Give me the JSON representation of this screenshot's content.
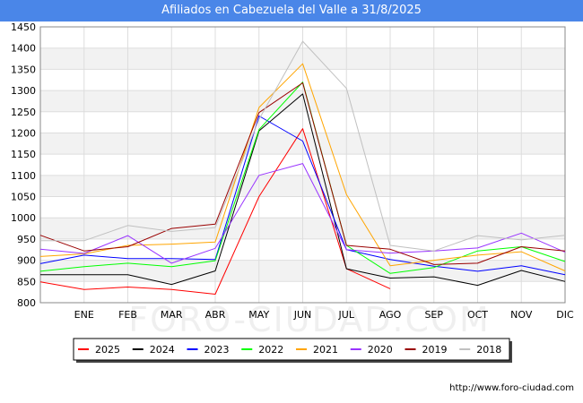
{
  "page": {
    "source_url": "http://www.foro-ciudad.com",
    "watermark": "FORO-CIUDAD.COM"
  },
  "chart_data": {
    "type": "line",
    "title": "Afiliados en Cabezuela del Valle a 31/8/2025",
    "xlabel": "",
    "ylabel": "",
    "categories": [
      "",
      "ENE",
      "FEB",
      "MAR",
      "ABR",
      "MAY",
      "JUN",
      "JUL",
      "AGO",
      "SEP",
      "OCT",
      "NOV",
      "DIC"
    ],
    "yticks": [
      800,
      850,
      900,
      950,
      1000,
      1050,
      1100,
      1150,
      1200,
      1250,
      1300,
      1350,
      1400,
      1450
    ],
    "ylim": [
      800,
      1450
    ],
    "grid": true,
    "legend": "bottom",
    "series": [
      {
        "name": "2025",
        "color": "#ff0000",
        "values": [
          849,
          831,
          837,
          831,
          820,
          1050,
          1210,
          880,
          833,
          null,
          null,
          null,
          null
        ]
      },
      {
        "name": "2024",
        "color": "#000000",
        "values": [
          866,
          866,
          866,
          843,
          875,
          1205,
          1292,
          880,
          858,
          861,
          841,
          876,
          850
        ]
      },
      {
        "name": "2023",
        "color": "#0000ff",
        "values": [
          892,
          912,
          904,
          904,
          902,
          1240,
          1181,
          925,
          902,
          886,
          874,
          887,
          866
        ]
      },
      {
        "name": "2022",
        "color": "#00ff00",
        "values": [
          874,
          885,
          893,
          885,
          899,
          1208,
          1320,
          935,
          869,
          883,
          922,
          932,
          897
        ]
      },
      {
        "name": "2021",
        "color": "#ffa500",
        "values": [
          909,
          915,
          935,
          938,
          943,
          1260,
          1363,
          1055,
          887,
          900,
          912,
          920,
          875
        ]
      },
      {
        "name": "2020",
        "color": "#9933ff",
        "values": [
          926,
          916,
          958,
          893,
          928,
          1100,
          1128,
          925,
          917,
          922,
          929,
          964,
          919
        ]
      },
      {
        "name": "2019",
        "color": "#990000",
        "values": [
          959,
          922,
          932,
          975,
          985,
          1248,
          1318,
          935,
          926,
          890,
          893,
          932,
          922
        ]
      },
      {
        "name": "2018",
        "color": "#c0c0c0",
        "values": [
          946,
          946,
          982,
          968,
          977,
          1232,
          1416,
          1305,
          935,
          922,
          958,
          948,
          959
        ]
      }
    ]
  }
}
